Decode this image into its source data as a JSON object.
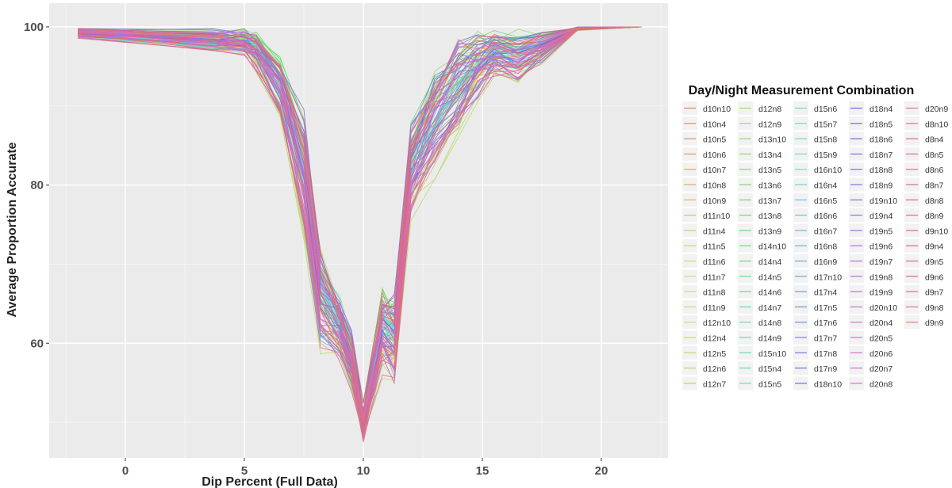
{
  "chart_data": {
    "type": "line",
    "xlabel": "Dip Percent (Full Data)",
    "ylabel": "Average Proportion Accurate",
    "x_ticks": [
      0,
      5,
      10,
      15,
      20
    ],
    "y_ticks": [
      60,
      80,
      100
    ],
    "xlim": [
      -3.2,
      22.8
    ],
    "ylim": [
      45.5,
      103
    ],
    "grid": true,
    "legend_position": "right",
    "legend_title": "Day/Night Measurement Combination",
    "series_x": [
      -2.0,
      3.7,
      5.0,
      5.5,
      6.5,
      7.5,
      8.2,
      9.0,
      9.5,
      10.0,
      10.8,
      11.3,
      12.0,
      13.0,
      14.0,
      14.8,
      15.5,
      16.5,
      17.5,
      19.0,
      21.7
    ],
    "series_envelope": {
      "upper": [
        100,
        100,
        100,
        99.8,
        97,
        90,
        73,
        67,
        62,
        53,
        68,
        67,
        90,
        96,
        100,
        100,
        100,
        100,
        100,
        100,
        100
      ],
      "lower": [
        98.5,
        96.5,
        96,
        94,
        88,
        72,
        58,
        57,
        53,
        47,
        55,
        54,
        74,
        80,
        85,
        90,
        93,
        92,
        95,
        99.5,
        100
      ]
    },
    "legend_entries": [
      "d10n10",
      "d10n4",
      "d10n5",
      "d10n6",
      "d10n7",
      "d10n8",
      "d10n9",
      "d11n10",
      "d11n4",
      "d11n5",
      "d11n6",
      "d11n7",
      "d11n8",
      "d11n9",
      "d12n10",
      "d12n4",
      "d12n5",
      "d12n6",
      "d12n7",
      "d12n8",
      "d12n9",
      "d13n10",
      "d13n4",
      "d13n5",
      "d13n6",
      "d13n7",
      "d13n8",
      "d13n9",
      "d14n10",
      "d14n4",
      "d14n5",
      "d14n6",
      "d14n7",
      "d14n8",
      "d14n9",
      "d15n10",
      "d15n4",
      "d15n5",
      "d15n6",
      "d15n7",
      "d15n8",
      "d15n9",
      "d16n10",
      "d16n4",
      "d16n5",
      "d16n6",
      "d16n7",
      "d16n8",
      "d16n9",
      "d17n10",
      "d17n4",
      "d17n5",
      "d17n6",
      "d17n7",
      "d17n8",
      "d17n9",
      "d18n10",
      "d18n4",
      "d18n5",
      "d18n6",
      "d18n7",
      "d18n8",
      "d18n9",
      "d19n10",
      "d19n4",
      "d19n5",
      "d19n6",
      "d19n7",
      "d19n8",
      "d19n9",
      "d20n10",
      "d20n4",
      "d20n5",
      "d20n6",
      "d20n7",
      "d20n8",
      "d20n9",
      "d8n10",
      "d8n4",
      "d8n5",
      "d8n6",
      "d8n7",
      "d8n8",
      "d8n9",
      "d9n10",
      "d9n4",
      "d9n5",
      "d9n6",
      "d9n7",
      "d9n8",
      "d9n9"
    ]
  }
}
